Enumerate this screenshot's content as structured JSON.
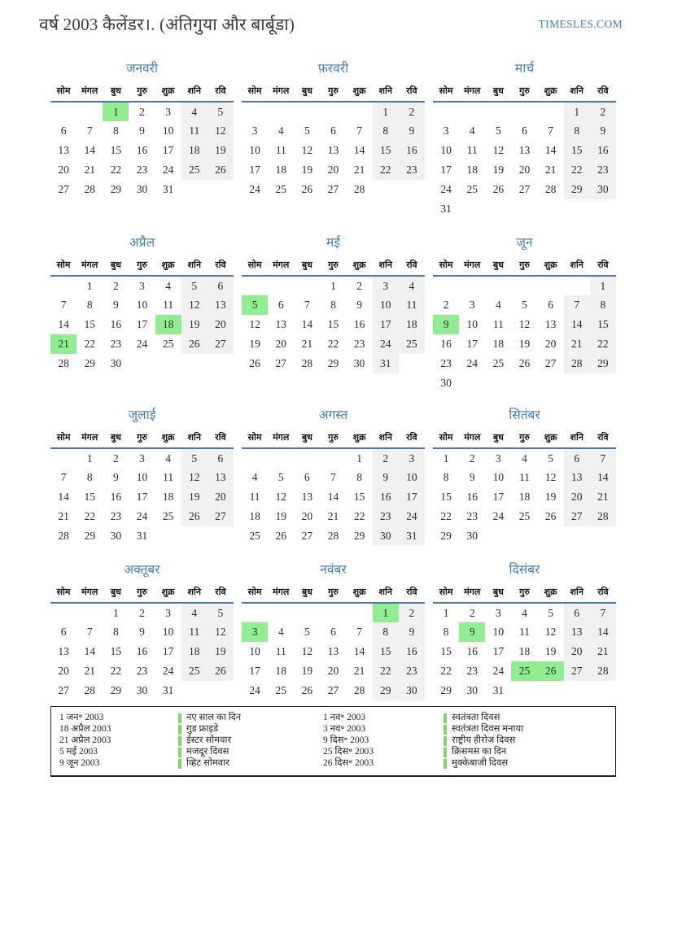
{
  "page": {
    "title": "वर्ष 2003 कैलेंडर।. (अंतिगुया और बार्बूडा)",
    "site": "TIMESLES.COM"
  },
  "colors": {
    "accent_blue": "#3d7ebf",
    "header_rule_blue": "#4a76ad",
    "weekend_bg": "#f0f0f0",
    "holiday_bg": "#90ee90",
    "legend_marker_green": "#74dd5c"
  },
  "weekdays": [
    "सोम",
    "मंगल",
    "बुध",
    "गुरु",
    "शुक्र",
    "शनि",
    "रवि"
  ],
  "months": [
    {
      "id": "january",
      "name": "जनवरी",
      "highlights": [
        1
      ],
      "weeks": [
        [
          "",
          "",
          "1",
          "2",
          "3",
          "4",
          "5"
        ],
        [
          "6",
          "7",
          "8",
          "9",
          "10",
          "11",
          "12"
        ],
        [
          "13",
          "14",
          "15",
          "16",
          "17",
          "18",
          "19"
        ],
        [
          "20",
          "21",
          "22",
          "23",
          "24",
          "25",
          "26"
        ],
        [
          "27",
          "28",
          "29",
          "30",
          "31",
          "",
          ""
        ]
      ]
    },
    {
      "id": "february",
      "name": "फ़रवरी",
      "highlights": [],
      "weeks": [
        [
          "",
          "",
          "",
          "",
          "",
          "1",
          "2"
        ],
        [
          "3",
          "4",
          "5",
          "6",
          "7",
          "8",
          "9"
        ],
        [
          "10",
          "11",
          "12",
          "13",
          "14",
          "15",
          "16"
        ],
        [
          "17",
          "18",
          "19",
          "20",
          "21",
          "22",
          "23"
        ],
        [
          "24",
          "25",
          "26",
          "27",
          "28",
          "",
          ""
        ]
      ]
    },
    {
      "id": "march",
      "name": "मार्च",
      "highlights": [],
      "weeks": [
        [
          "",
          "",
          "",
          "",
          "",
          "1",
          "2"
        ],
        [
          "3",
          "4",
          "5",
          "6",
          "7",
          "8",
          "9"
        ],
        [
          "10",
          "11",
          "12",
          "13",
          "14",
          "15",
          "16"
        ],
        [
          "17",
          "18",
          "19",
          "20",
          "21",
          "22",
          "23"
        ],
        [
          "24",
          "25",
          "26",
          "27",
          "28",
          "29",
          "30"
        ],
        [
          "31",
          "",
          "",
          "",
          "",
          "",
          ""
        ]
      ]
    },
    {
      "id": "april",
      "name": "अप्रैल",
      "highlights": [
        18,
        21
      ],
      "weeks": [
        [
          "",
          "1",
          "2",
          "3",
          "4",
          "5",
          "6"
        ],
        [
          "7",
          "8",
          "9",
          "10",
          "11",
          "12",
          "13"
        ],
        [
          "14",
          "15",
          "16",
          "17",
          "18",
          "19",
          "20"
        ],
        [
          "21",
          "22",
          "23",
          "24",
          "25",
          "26",
          "27"
        ],
        [
          "28",
          "29",
          "30",
          "",
          "",
          "",
          ""
        ]
      ]
    },
    {
      "id": "may",
      "name": "मई",
      "highlights": [
        5
      ],
      "weeks": [
        [
          "",
          "",
          "",
          "1",
          "2",
          "3",
          "4"
        ],
        [
          "5",
          "6",
          "7",
          "8",
          "9",
          "10",
          "11"
        ],
        [
          "12",
          "13",
          "14",
          "15",
          "16",
          "17",
          "18"
        ],
        [
          "19",
          "20",
          "21",
          "22",
          "23",
          "24",
          "25"
        ],
        [
          "26",
          "27",
          "28",
          "29",
          "30",
          "31",
          ""
        ]
      ]
    },
    {
      "id": "june",
      "name": "जून",
      "highlights": [
        9
      ],
      "weeks": [
        [
          "",
          "",
          "",
          "",
          "",
          "",
          "1"
        ],
        [
          "2",
          "3",
          "4",
          "5",
          "6",
          "7",
          "8"
        ],
        [
          "9",
          "10",
          "11",
          "12",
          "13",
          "14",
          "15"
        ],
        [
          "16",
          "17",
          "18",
          "19",
          "20",
          "21",
          "22"
        ],
        [
          "23",
          "24",
          "25",
          "26",
          "27",
          "28",
          "29"
        ],
        [
          "30",
          "",
          "",
          "",
          "",
          "",
          ""
        ]
      ]
    },
    {
      "id": "july",
      "name": "जुलाई",
      "highlights": [],
      "weeks": [
        [
          "",
          "1",
          "2",
          "3",
          "4",
          "5",
          "6"
        ],
        [
          "7",
          "8",
          "9",
          "10",
          "11",
          "12",
          "13"
        ],
        [
          "14",
          "15",
          "16",
          "17",
          "18",
          "19",
          "20"
        ],
        [
          "21",
          "22",
          "23",
          "24",
          "25",
          "26",
          "27"
        ],
        [
          "28",
          "29",
          "30",
          "31",
          "",
          "",
          ""
        ]
      ]
    },
    {
      "id": "august",
      "name": "अगस्त",
      "highlights": [],
      "weeks": [
        [
          "",
          "",
          "",
          "",
          "1",
          "2",
          "3"
        ],
        [
          "4",
          "5",
          "6",
          "7",
          "8",
          "9",
          "10"
        ],
        [
          "11",
          "12",
          "13",
          "14",
          "15",
          "16",
          "17"
        ],
        [
          "18",
          "19",
          "20",
          "21",
          "22",
          "23",
          "24"
        ],
        [
          "25",
          "26",
          "27",
          "28",
          "29",
          "30",
          "31"
        ]
      ]
    },
    {
      "id": "september",
      "name": "सितंबर",
      "highlights": [],
      "weeks": [
        [
          "1",
          "2",
          "3",
          "4",
          "5",
          "6",
          "7"
        ],
        [
          "8",
          "9",
          "10",
          "11",
          "12",
          "13",
          "14"
        ],
        [
          "15",
          "16",
          "17",
          "18",
          "19",
          "20",
          "21"
        ],
        [
          "22",
          "23",
          "24",
          "25",
          "26",
          "27",
          "28"
        ],
        [
          "29",
          "30",
          "",
          "",
          "",
          "",
          ""
        ]
      ]
    },
    {
      "id": "october",
      "name": "अक्तूबर",
      "highlights": [],
      "weeks": [
        [
          "",
          "",
          "1",
          "2",
          "3",
          "4",
          "5"
        ],
        [
          "6",
          "7",
          "8",
          "9",
          "10",
          "11",
          "12"
        ],
        [
          "13",
          "14",
          "15",
          "16",
          "17",
          "18",
          "19"
        ],
        [
          "20",
          "21",
          "22",
          "23",
          "24",
          "25",
          "26"
        ],
        [
          "27",
          "28",
          "29",
          "30",
          "31",
          "",
          ""
        ]
      ]
    },
    {
      "id": "november",
      "name": "नवंबर",
      "highlights": [
        1,
        3
      ],
      "weeks": [
        [
          "",
          "",
          "",
          "",
          "",
          "1",
          "2"
        ],
        [
          "3",
          "4",
          "5",
          "6",
          "7",
          "8",
          "9"
        ],
        [
          "10",
          "11",
          "12",
          "13",
          "14",
          "15",
          "16"
        ],
        [
          "17",
          "18",
          "19",
          "20",
          "21",
          "22",
          "23"
        ],
        [
          "24",
          "25",
          "26",
          "27",
          "28",
          "29",
          "30"
        ]
      ]
    },
    {
      "id": "december",
      "name": "दिसंबर",
      "highlights": [
        9,
        25,
        26
      ],
      "weeks": [
        [
          "1",
          "2",
          "3",
          "4",
          "5",
          "6",
          "7"
        ],
        [
          "8",
          "9",
          "10",
          "11",
          "12",
          "13",
          "14"
        ],
        [
          "15",
          "16",
          "17",
          "18",
          "19",
          "20",
          "21"
        ],
        [
          "22",
          "23",
          "24",
          "25",
          "26",
          "27",
          "28"
        ],
        [
          "29",
          "30",
          "31",
          "",
          "",
          "",
          ""
        ]
      ]
    }
  ],
  "legend": {
    "left": [
      {
        "date": "1 जन॰ 2003",
        "name": "नए साल का दिन"
      },
      {
        "date": "18 अप्रैल 2003",
        "name": "गुड फ्राइडे"
      },
      {
        "date": "21 अप्रैल 2003",
        "name": "ईस्टर सोमवार"
      },
      {
        "date": "5 मई 2003",
        "name": "मजदूर दिवस"
      },
      {
        "date": "9 जून 2003",
        "name": "व्हिट सोमवार"
      }
    ],
    "right": [
      {
        "date": "1 नव॰ 2003",
        "name": "स्वतंत्रता दिवस"
      },
      {
        "date": "3 नव॰ 2003",
        "name": "स्वतंत्रता दिवस मनाया"
      },
      {
        "date": "9 दिस॰ 2003",
        "name": "राष्ट्रीय हीरोज दिवस"
      },
      {
        "date": "25 दिस॰ 2003",
        "name": "क्रिसमस का दिन"
      },
      {
        "date": "26 दिस॰ 2003",
        "name": "मुक्केबाजी दिवस"
      }
    ]
  }
}
